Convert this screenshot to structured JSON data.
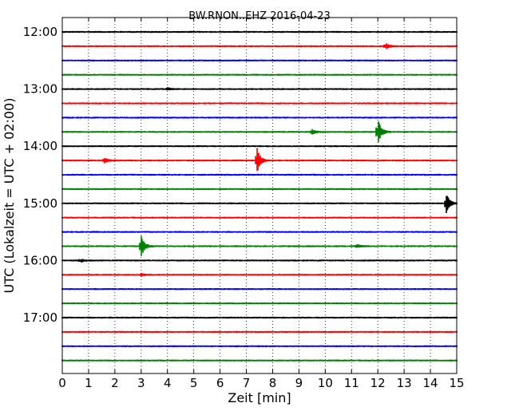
{
  "chart_data": {
    "type": "line",
    "title": "BW.RNON..EHZ 2016-04-23",
    "xlabel": "Zeit  [min]",
    "ylabel": "UTC (Lokalzeit = UTC + 02:00)",
    "xlim": [
      0,
      15
    ],
    "x_ticks": [
      "0",
      "1",
      "2",
      "3",
      "4",
      "5",
      "6",
      "7",
      "8",
      "9",
      "10",
      "11",
      "12",
      "13",
      "14",
      "15"
    ],
    "y_ticks": [
      "12:00",
      "13:00",
      "14:00",
      "15:00",
      "16:00",
      "17:00"
    ],
    "trace_interval_min": 15,
    "trace_start": "12:00",
    "trace_end": "17:45",
    "vertical_grid": "dotted",
    "colors": [
      "#000000",
      "#ff0000",
      "#0000ff",
      "#008000"
    ],
    "events": [
      {
        "trace_start": "12:15",
        "minute": 12.3,
        "amplitude": 0.35
      },
      {
        "trace_start": "13:00",
        "minute": 4.0,
        "amplitude": 0.15
      },
      {
        "trace_start": "13:45",
        "minute": 9.5,
        "amplitude": 0.3
      },
      {
        "trace_start": "13:45",
        "minute": 12.0,
        "amplitude": 1.6
      },
      {
        "trace_start": "14:15",
        "minute": 1.6,
        "amplitude": 0.35
      },
      {
        "trace_start": "14:15",
        "minute": 7.4,
        "amplitude": 1.6
      },
      {
        "trace_start": "15:00",
        "minute": 14.6,
        "amplitude": 1.3
      },
      {
        "trace_start": "15:45",
        "minute": 3.0,
        "amplitude": 1.3
      },
      {
        "trace_start": "15:45",
        "minute": 11.2,
        "amplitude": 0.2
      },
      {
        "trace_start": "16:00",
        "minute": 0.7,
        "amplitude": 0.2
      },
      {
        "trace_start": "16:15",
        "minute": 3.0,
        "amplitude": 0.2
      }
    ]
  }
}
